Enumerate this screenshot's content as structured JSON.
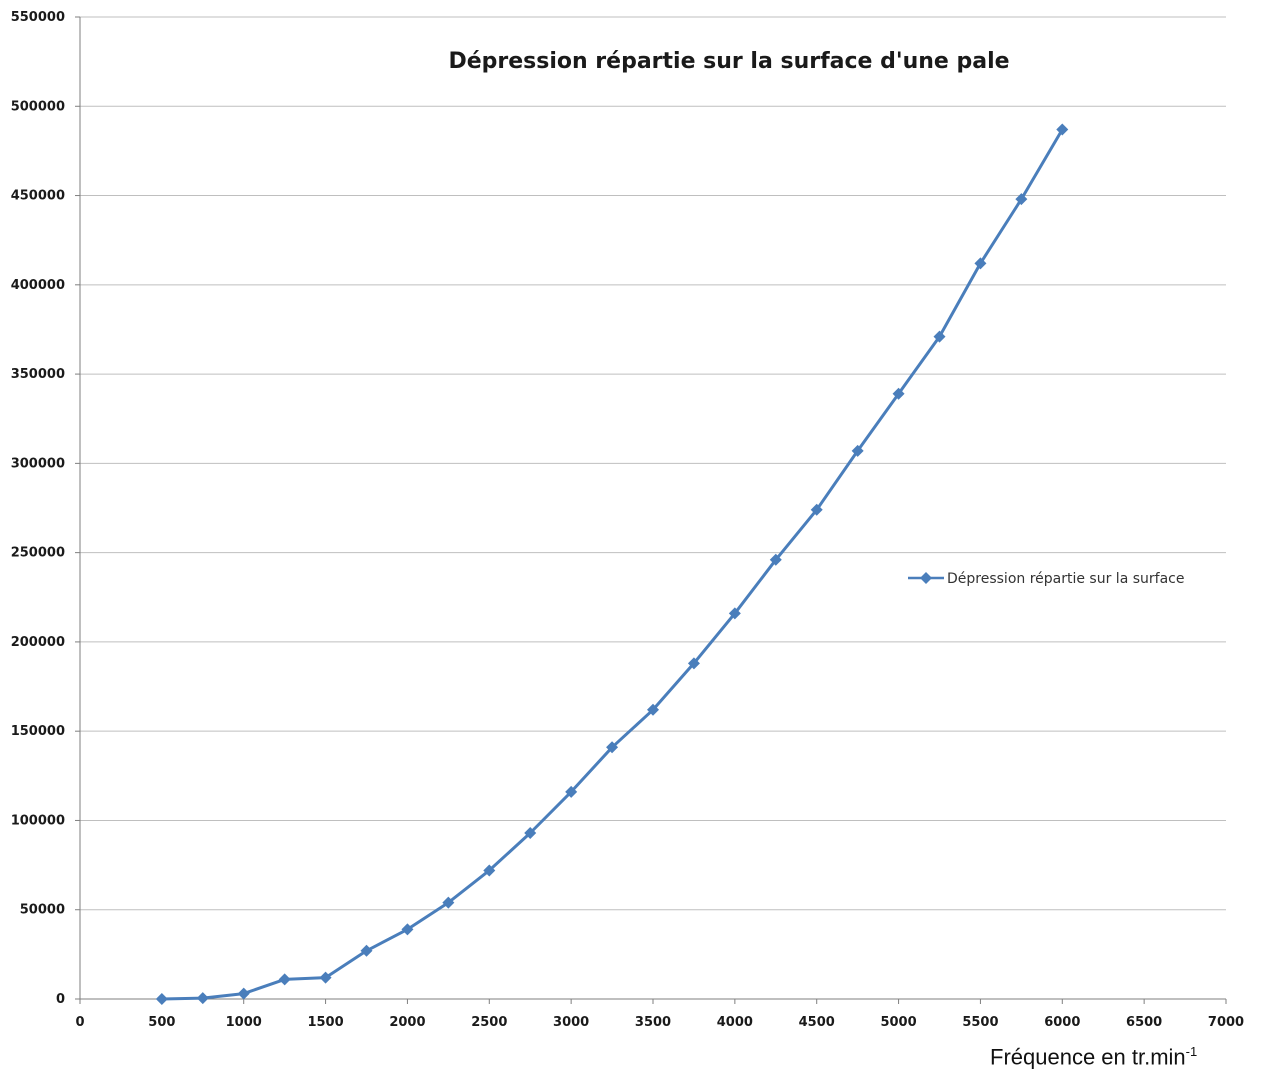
{
  "chart_data": {
    "type": "line",
    "title": "Dépression répartie sur la surface d'une pale",
    "xlabel": "Fréquence  en tr.min",
    "xlabel_exponent": "-1",
    "ylabel": "",
    "xlim": [
      0,
      7000
    ],
    "ylim": [
      0,
      550000
    ],
    "x_ticks": [
      "0",
      "500",
      "1000",
      "1500",
      "2000",
      "2500",
      "3000",
      "3500",
      "4000",
      "4500",
      "5000",
      "5500",
      "6000",
      "6500",
      "7000"
    ],
    "y_ticks": [
      "0",
      "50000",
      "100000",
      "150000",
      "200000",
      "250000",
      "300000",
      "350000",
      "400000",
      "450000",
      "500000",
      "550000"
    ],
    "grid": true,
    "legend_position": "right",
    "series": [
      {
        "name": "Dépression répartie sur la surface",
        "color": "#4a7ebb",
        "marker": "diamond",
        "x": [
          500,
          750,
          1000,
          1250,
          1500,
          1750,
          2000,
          2250,
          2500,
          2750,
          3000,
          3250,
          3500,
          3750,
          4000,
          4250,
          4500,
          4750,
          5000,
          5250,
          5500,
          5750,
          6000
        ],
        "y": [
          0,
          500,
          3000,
          11000,
          12000,
          27000,
          39000,
          54000,
          72000,
          93000,
          116000,
          141000,
          162000,
          188000,
          216000,
          246000,
          274000,
          307000,
          339000,
          371000,
          412000,
          448000,
          487000
        ]
      }
    ]
  }
}
